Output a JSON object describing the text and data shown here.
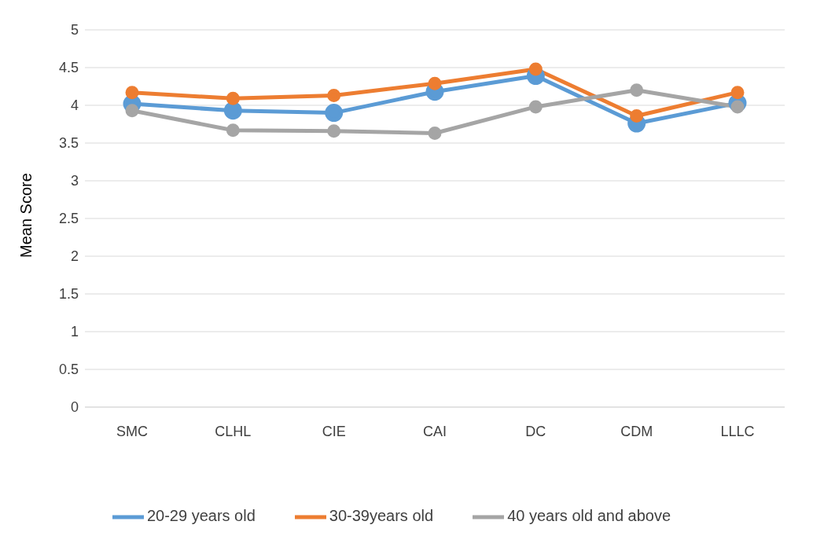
{
  "chart_data": {
    "type": "line",
    "ylabel": "Mean Score",
    "categories": [
      "SMC",
      "CLHL",
      "CIE",
      "CAI",
      "DC",
      "CDM",
      "LLLC"
    ],
    "series": [
      {
        "name": "20-29 years old",
        "color": "#5b9bd5",
        "values": [
          4.02,
          3.93,
          3.9,
          4.18,
          4.39,
          3.76,
          4.03
        ]
      },
      {
        "name": "30-39years old",
        "color": "#ed7d31",
        "values": [
          4.17,
          4.09,
          4.13,
          4.29,
          4.48,
          3.86,
          4.17
        ]
      },
      {
        "name": "40 years old and above",
        "color": "#a5a5a5",
        "values": [
          3.93,
          3.67,
          3.66,
          3.63,
          3.98,
          4.2,
          3.98
        ]
      }
    ],
    "ylim": [
      0,
      5
    ],
    "yticks": [
      0,
      0.5,
      1,
      1.5,
      2,
      2.5,
      3,
      3.5,
      4,
      4.5,
      5
    ],
    "grid": "y",
    "legend": "bottom",
    "marker": "circle",
    "line_style": "solid"
  }
}
